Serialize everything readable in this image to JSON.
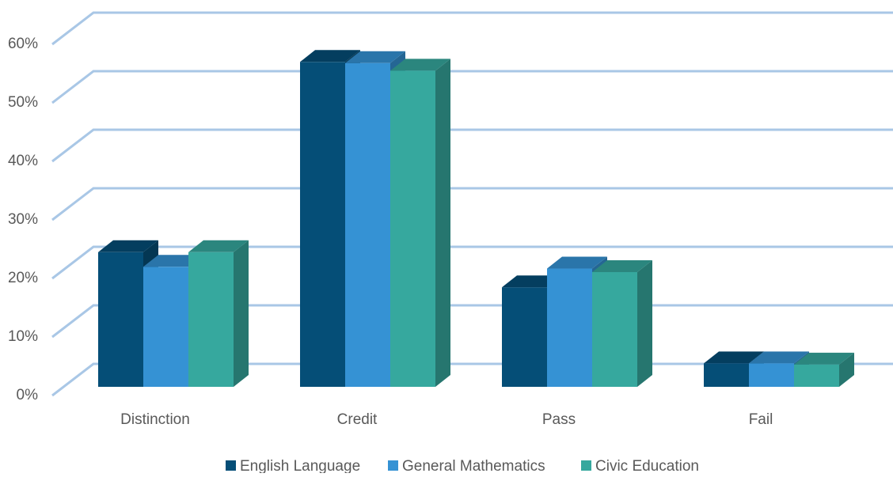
{
  "chart_data": {
    "type": "bar3d",
    "categories": [
      "Distinction",
      "Credit",
      "Pass",
      "Fail"
    ],
    "series": [
      {
        "name": "English Language",
        "color": "#054e77",
        "values": [
          23,
          55.5,
          17,
          4
        ]
      },
      {
        "name": "General Mathematics",
        "color": "#3592d4",
        "values": [
          20.5,
          55.3,
          20.2,
          4
        ]
      },
      {
        "name": "Civic Education",
        "color": "#36a89e",
        "values": [
          23,
          54,
          19.6,
          3.8
        ]
      }
    ],
    "ylim": [
      0,
      60
    ],
    "yticks": [
      {
        "value": 0,
        "label": "0%"
      },
      {
        "value": 10,
        "label": "10%"
      },
      {
        "value": 20,
        "label": "20%"
      },
      {
        "value": 30,
        "label": "30%"
      },
      {
        "value": 40,
        "label": "40%"
      },
      {
        "value": 50,
        "label": "50%"
      },
      {
        "value": 60,
        "label": "60%"
      }
    ],
    "grid": true
  }
}
